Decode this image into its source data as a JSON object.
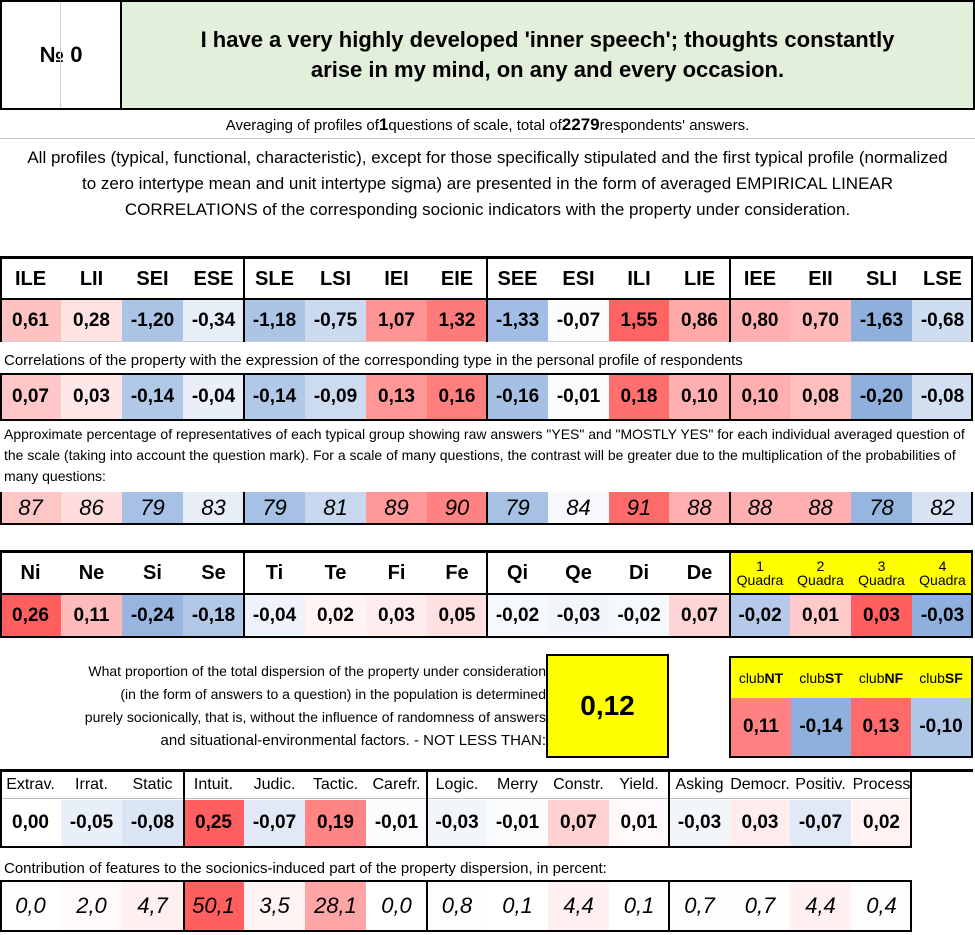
{
  "header": {
    "num_label": "№ 0",
    "question": "I have a very highly developed 'inner speech'; thoughts constantly arise in my mind, on any and every occasion."
  },
  "averaging": {
    "prefix": "Averaging of profiles of ",
    "questions_count": "1",
    "mid": " questions of scale, total of ",
    "respondents": "2279",
    "suffix": " respondents' answers."
  },
  "description": "All profiles (typical, functional, characteristic), except for those specifically stipulated and the first typical profile (normalized to zero intertype mean and unit intertype sigma) are presented in the form of averaged EMPIRICAL LINEAR CORRELATIONS of the corresponding socionic indicators with the property under consideration.",
  "colors": {
    "red_strong": "#ef5f5f",
    "blue_strong": "#8fb0dd",
    "yellow": "#ffff00",
    "header_green": "#e2efda"
  },
  "types": {
    "labels": [
      "ILE",
      "LII",
      "SEI",
      "ESE",
      "SLE",
      "LSI",
      "IEI",
      "EIE",
      "SEE",
      "ESI",
      "ILI",
      "LIE",
      "IEE",
      "EII",
      "SLI",
      "LSE"
    ],
    "profile": [
      "0,61",
      "0,28",
      "-1,20",
      "-0,34",
      "-1,18",
      "-0,75",
      "1,07",
      "1,32",
      "-1,33",
      "-0,07",
      "1,55",
      "0,86",
      "0,80",
      "0,70",
      "-1,63",
      "-0,68"
    ],
    "correlation_note": "Correlations of the property with the expression of the corresponding type in the personal profile of respondents",
    "correlations": [
      "0,07",
      "0,03",
      "-0,14",
      "-0,04",
      "-0,14",
      "-0,09",
      "0,13",
      "0,16",
      "-0,16",
      "-0,01",
      "0,18",
      "0,10",
      "0,10",
      "0,08",
      "-0,20",
      "-0,08"
    ],
    "percentage_note": "Approximate percentage of representatives of each typical group showing raw answers \"YES\" and \"MOSTLY YES\" for each individual averaged question of the scale (taking into account the question mark). For a scale of many questions, the contrast will be greater due to the multiplication of the probabilities of many questions:",
    "percentages": [
      "87",
      "86",
      "79",
      "83",
      "79",
      "81",
      "89",
      "90",
      "79",
      "84",
      "91",
      "88",
      "88",
      "88",
      "78",
      "82"
    ]
  },
  "functions": {
    "labels": [
      "Ni",
      "Ne",
      "Si",
      "Se",
      "Ti",
      "Te",
      "Fi",
      "Fe",
      "Qi",
      "Qe",
      "Di",
      "De"
    ],
    "values": [
      "0,26",
      "0,11",
      "-0,24",
      "-0,18",
      "-0,04",
      "0,02",
      "0,03",
      "0,05",
      "-0,02",
      "-0,03",
      "-0,02",
      "0,07"
    ]
  },
  "quadras": {
    "labels": [
      {
        "num": "1",
        "word": "Quadra"
      },
      {
        "num": "2",
        "word": "Quadra"
      },
      {
        "num": "3",
        "word": "Quadra"
      },
      {
        "num": "4",
        "word": "Quadra"
      }
    ],
    "values": [
      "-0,02",
      "0,01",
      "0,03",
      "-0,03"
    ]
  },
  "dispersion": {
    "text_lines": [
      "What proportion of the total dispersion of the property under consideration",
      "(in the form of answers to a question) in the population is determined",
      "purely socionically, that is, without the influence of randomness of answers",
      "and situational-environmental factors. - NOT LESS THAN:"
    ],
    "value": "0,12"
  },
  "clubs": {
    "labels": [
      {
        "pre": "club",
        "bold": "NT"
      },
      {
        "pre": "club",
        "bold": "ST"
      },
      {
        "pre": "club",
        "bold": "NF"
      },
      {
        "pre": "club",
        "bold": "SF"
      }
    ],
    "values": [
      "0,11",
      "-0,14",
      "0,13",
      "-0,10"
    ]
  },
  "features": {
    "labels": [
      "Extrav.",
      "Irrat.",
      "Static",
      "Intuit.",
      "Judic.",
      "Tactic.",
      "Carefr.",
      "Logic.",
      "Merry",
      "Constr.",
      "Yield.",
      "Asking",
      "Democr.",
      "Positiv.",
      "Process"
    ],
    "values": [
      "0,00",
      "-0,05",
      "-0,08",
      "0,25",
      "-0,07",
      "0,19",
      "-0,01",
      "-0,03",
      "-0,01",
      "0,07",
      "0,01",
      "-0,03",
      "0,03",
      "-0,07",
      "0,02"
    ],
    "contribution_note": "Contribution of features to the sociоnics-induced part of the property dispersion, in percent:",
    "contributions": [
      "0,0",
      "2,0",
      "4,7",
      "50,1",
      "3,5",
      "28,1",
      "0,0",
      "0,8",
      "0,1",
      "4,4",
      "0,1",
      "0,7",
      "0,7",
      "4,4",
      "0,4"
    ]
  }
}
